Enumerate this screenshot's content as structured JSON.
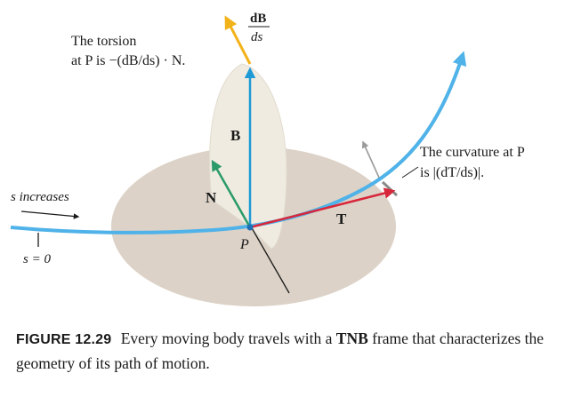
{
  "labels": {
    "torsion_line1": "The torsion",
    "torsion_line2": "at P is −(dB/ds) · N.",
    "db_num": "dB",
    "db_den": "ds",
    "vector_B": "B",
    "vector_N": "N",
    "vector_T": "T",
    "point_P": "P",
    "curvature_line1": "The curvature at P",
    "curvature_line2": "is |(dT/ds)|.",
    "s_increases": "s increases",
    "s_zero": "s = 0"
  },
  "caption": {
    "number": "FIGURE 12.29",
    "text_before": "Every moving body travels with a",
    "bold": "TNB",
    "text_after": "frame that characterizes the geometry of its path of motion."
  },
  "colors": {
    "ellipse_fill": "#dcd2c7",
    "upper_plane": "#efebe1",
    "curve": "#4fb2e8",
    "vector_B": "#1f9ad6",
    "vector_N": "#2a9a6a",
    "vector_T": "#d8263a",
    "vector_dB": "#f2b21a",
    "text": "#1a1a1a"
  }
}
